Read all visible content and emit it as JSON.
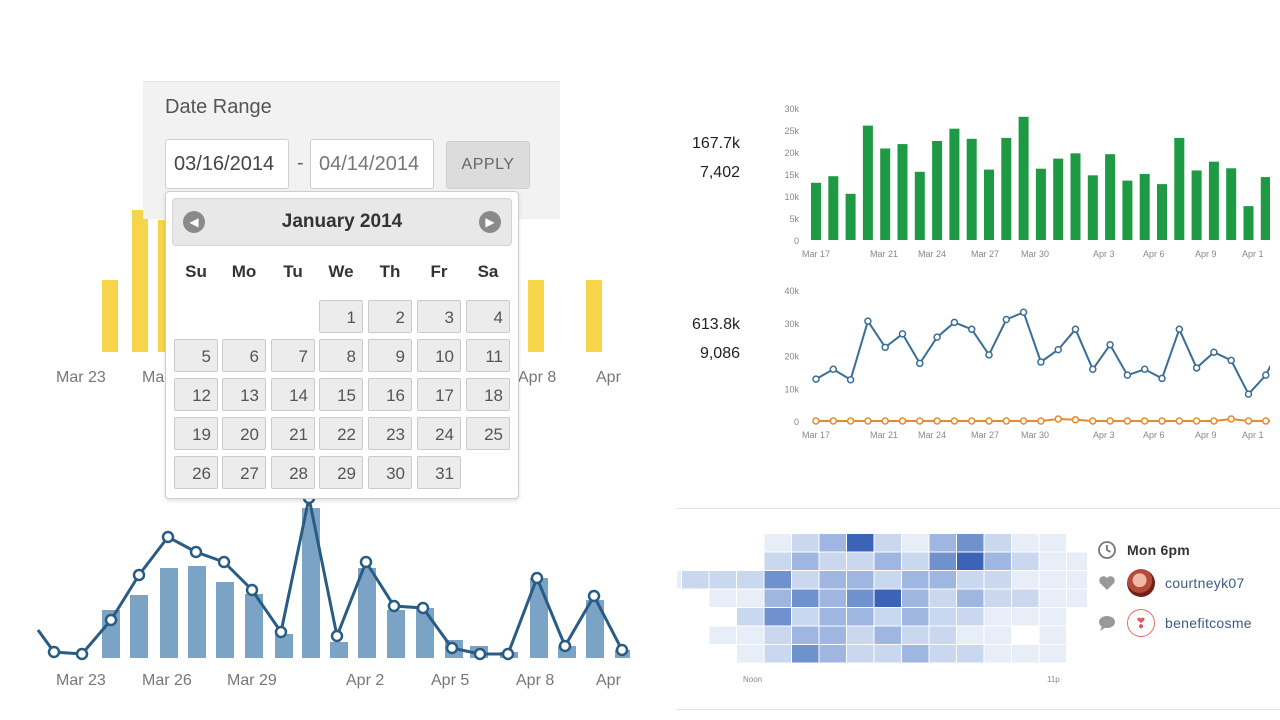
{
  "date_range": {
    "title": "Date Range",
    "start": "03/16/2014",
    "end": "04/14/2014",
    "separator": "-",
    "apply_label": "APPLY"
  },
  "calendar": {
    "month_label": "January 2014",
    "prev_icon": "chevron-left-icon",
    "next_icon": "chevron-right-icon",
    "weekdays": [
      "Su",
      "Mo",
      "Tu",
      "We",
      "Th",
      "Fr",
      "Sa"
    ],
    "first_weekday_index": 3,
    "days": [
      1,
      2,
      3,
      4,
      5,
      6,
      7,
      8,
      9,
      10,
      11,
      12,
      13,
      14,
      15,
      16,
      17,
      18,
      19,
      20,
      21,
      22,
      23,
      24,
      25,
      26,
      27,
      28,
      29,
      30,
      31
    ]
  },
  "metrics": {
    "chart1_total": "167.7k",
    "chart1_sub": "7,402",
    "chart2_total": "613.8k",
    "chart2_sub": "9,086"
  },
  "left_top_chart": {
    "tick_labels": [
      "Mar 23",
      "Ma",
      "Apr 8",
      "Apr"
    ],
    "bar_color": "#f7d54a"
  },
  "left_bottom_chart": {
    "tick_labels": [
      "Mar 23",
      "Mar 26",
      "Mar 29",
      "Apr 2",
      "Apr 5",
      "Apr 8",
      "Apr"
    ],
    "bar_color": "#7ba3c6",
    "line_color": "#295c84"
  },
  "chart_data": [
    {
      "type": "bar",
      "color": "#1e9a45",
      "yticks": [
        "30k",
        "25k",
        "20k",
        "15k",
        "10k",
        "5k",
        "0"
      ],
      "ylim": [
        0,
        30000
      ],
      "x_tick_labels": [
        "Mar 17",
        "Mar 21",
        "Mar 24",
        "Mar 27",
        "Mar 30",
        "Apr 3",
        "Apr 6",
        "Apr 9",
        "Apr 1"
      ],
      "values": [
        13000,
        14500,
        10500,
        26000,
        20800,
        21800,
        15500,
        22500,
        25300,
        23000,
        16000,
        23200,
        28000,
        16200,
        18500,
        19700,
        14700,
        19500,
        13500,
        15000,
        12700,
        23200,
        15800,
        17800,
        16300,
        7700,
        14300
      ]
    },
    {
      "type": "line",
      "yticks": [
        "40k",
        "30k",
        "20k",
        "10k",
        "0"
      ],
      "ylim": [
        0,
        40000
      ],
      "x_tick_labels": [
        "Mar 17",
        "Mar 21",
        "Mar 24",
        "Mar 27",
        "Mar 30",
        "Apr 3",
        "Apr 6",
        "Apr 9",
        "Apr 1"
      ],
      "series": [
        {
          "color": "#3a6e96",
          "values": [
            12800,
            15800,
            12600,
            30500,
            22500,
            26600,
            17600,
            25600,
            30100,
            28000,
            20200,
            31000,
            33200,
            18000,
            21800,
            28000,
            15800,
            23300,
            14000,
            15800,
            13000,
            28000,
            16200,
            21000,
            18500,
            8200,
            14000,
            24500
          ]
        },
        {
          "color": "#e8892d",
          "values": [
            0,
            0,
            0,
            0,
            0,
            0,
            0,
            0,
            0,
            0,
            0,
            0,
            0,
            0,
            600,
            400,
            0,
            0,
            0,
            0,
            0,
            0,
            0,
            0,
            600,
            0,
            0,
            0
          ]
        }
      ]
    }
  ],
  "heatmap": {
    "x_labels": [
      "Noon",
      "11p"
    ],
    "base_color": "#3b63b8"
  },
  "activity": {
    "time_icon": "clock-icon",
    "time_label": "Mon 6pm",
    "like_icon": "heart-icon",
    "like_user": "courtneyk07",
    "comment_icon": "comment-icon",
    "comment_user": "benefitcosme"
  }
}
